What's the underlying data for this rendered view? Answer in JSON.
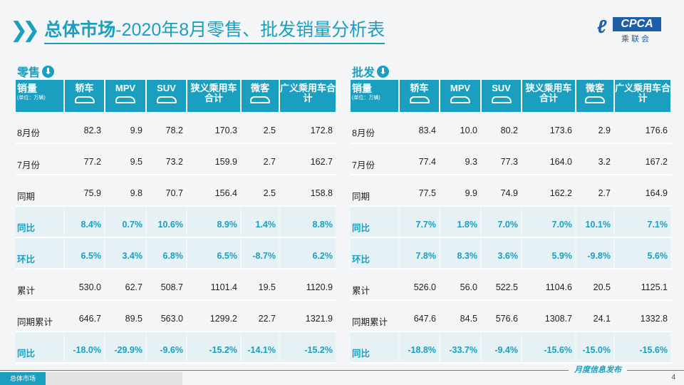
{
  "header": {
    "title_bold": "总体市场",
    "title_rest": "-2020年8月零售、批发销量分析表",
    "logo_text": "CPCA",
    "logo_cn": "乘联会"
  },
  "columns": {
    "label": "销量",
    "unit": "(单位：万辆)",
    "cols": [
      "轿车",
      "MPV",
      "SUV",
      "狭义乘用车合计",
      "微客",
      "广义乘用车合计"
    ]
  },
  "retail": {
    "title": "零售",
    "rows": [
      {
        "label": "8月份",
        "pct": false,
        "values": [
          "82.3",
          "9.9",
          "78.2",
          "170.3",
          "2.5",
          "172.8"
        ]
      },
      {
        "label": "7月份",
        "pct": false,
        "values": [
          "77.2",
          "9.5",
          "73.2",
          "159.9",
          "2.7",
          "162.7"
        ]
      },
      {
        "label": "同期",
        "pct": false,
        "values": [
          "75.9",
          "9.8",
          "70.7",
          "156.4",
          "2.5",
          "158.8"
        ]
      },
      {
        "label": "同比",
        "pct": true,
        "values": [
          "8.4%",
          "0.7%",
          "10.6%",
          "8.9%",
          "1.4%",
          "8.8%"
        ]
      },
      {
        "label": "环比",
        "pct": true,
        "values": [
          "6.5%",
          "3.4%",
          "6.8%",
          "6.5%",
          "-8.7%",
          "6.2%"
        ]
      },
      {
        "label": "累计",
        "pct": false,
        "values": [
          "530.0",
          "62.7",
          "508.7",
          "1101.4",
          "19.5",
          "1120.9"
        ]
      },
      {
        "label": "同期累计",
        "pct": false,
        "values": [
          "646.7",
          "89.5",
          "563.0",
          "1299.2",
          "22.7",
          "1321.9"
        ]
      },
      {
        "label": "同比",
        "pct": true,
        "values": [
          "-18.0%",
          "-29.9%",
          "-9.6%",
          "-15.2%",
          "-14.1%",
          "-15.2%"
        ]
      }
    ]
  },
  "wholesale": {
    "title": "批发",
    "rows": [
      {
        "label": "8月份",
        "pct": false,
        "values": [
          "83.4",
          "10.0",
          "80.2",
          "173.6",
          "2.9",
          "176.6"
        ]
      },
      {
        "label": "7月份",
        "pct": false,
        "values": [
          "77.4",
          "9.3",
          "77.3",
          "164.0",
          "3.2",
          "167.2"
        ]
      },
      {
        "label": "同期",
        "pct": false,
        "values": [
          "77.5",
          "9.9",
          "74.9",
          "162.2",
          "2.7",
          "164.9"
        ]
      },
      {
        "label": "同比",
        "pct": true,
        "values": [
          "7.7%",
          "1.8%",
          "7.0%",
          "7.0%",
          "10.1%",
          "7.1%"
        ]
      },
      {
        "label": "环比",
        "pct": true,
        "values": [
          "7.8%",
          "8.3%",
          "3.6%",
          "5.9%",
          "-9.8%",
          "5.6%"
        ]
      },
      {
        "label": "累计",
        "pct": false,
        "values": [
          "526.0",
          "56.0",
          "522.5",
          "1104.6",
          "20.5",
          "1125.1"
        ]
      },
      {
        "label": "同期累计",
        "pct": false,
        "values": [
          "647.6",
          "84.5",
          "576.6",
          "1308.7",
          "24.1",
          "1332.8"
        ]
      },
      {
        "label": "同比",
        "pct": true,
        "values": [
          "-18.8%",
          "-33.7%",
          "-9.4%",
          "-15.6%",
          "-15.0%",
          "-15.6%"
        ]
      }
    ]
  },
  "footer": {
    "tabs": [
      "总体市场"
    ],
    "tagline": "月度信息发布",
    "page": "4"
  },
  "colors": {
    "accent": "#1a9fc0",
    "pct_bg": "#e6f1f6"
  }
}
